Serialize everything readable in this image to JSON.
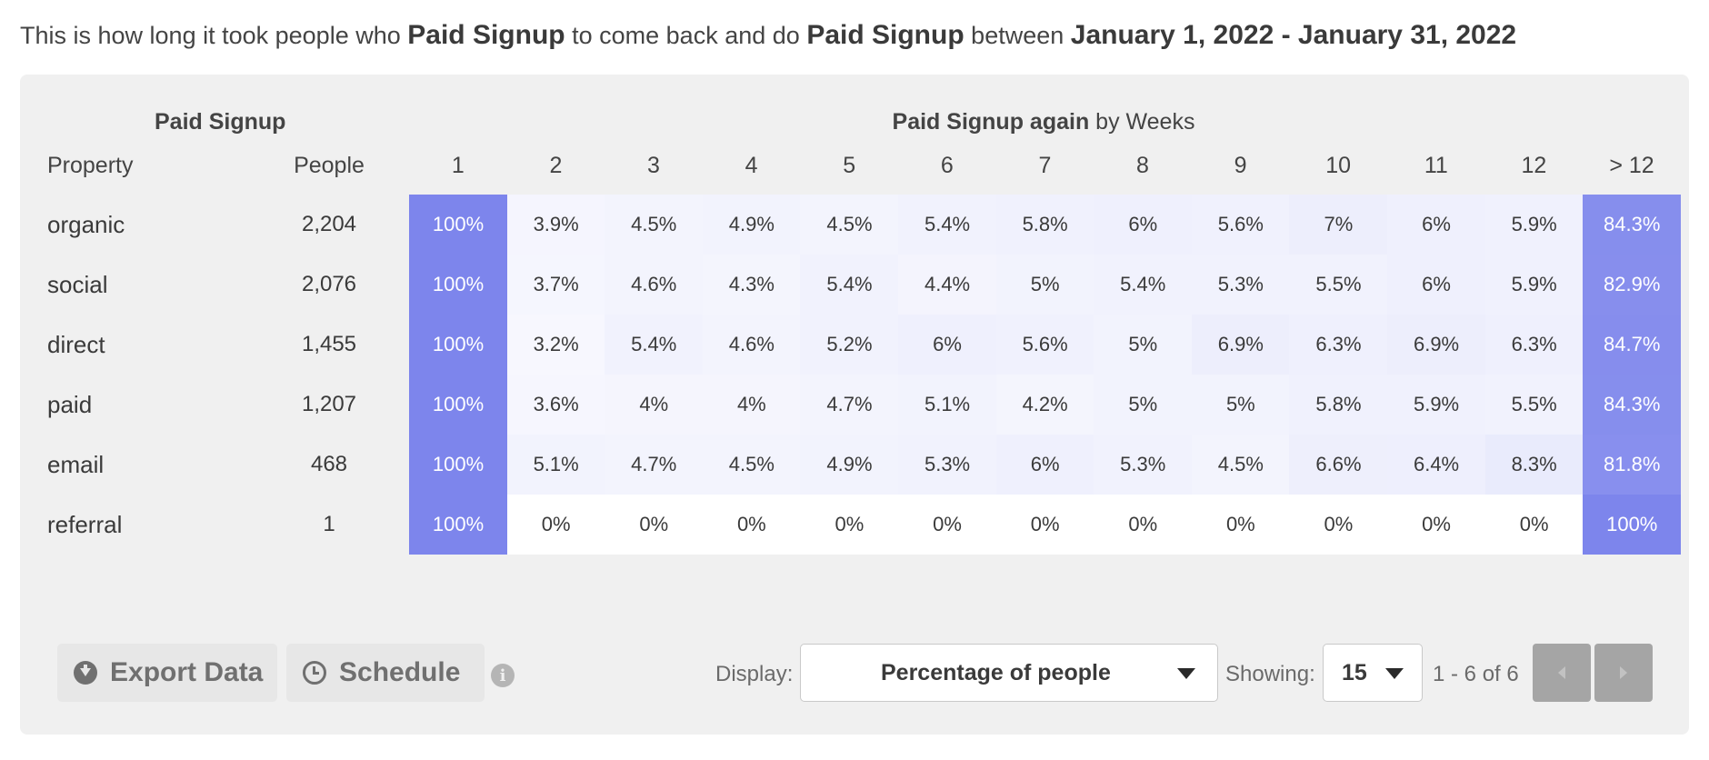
{
  "summary": {
    "prefix": "This is how long it took people who",
    "event": "Paid Signup",
    "middle": "to come back and do",
    "return_event": "Paid Signup",
    "between": "between",
    "date_range": "January 1, 2022 - January 31, 2022"
  },
  "table": {
    "event_header": "Paid Signup",
    "return_header_bold": "Paid Signup again",
    "return_header_rest": "by Weeks",
    "property_header": "Property",
    "people_header": "People",
    "columns": [
      "1",
      "2",
      "3",
      "4",
      "5",
      "6",
      "7",
      "8",
      "9",
      "10",
      "11",
      "12",
      "> 12"
    ],
    "rows": [
      {
        "label": "organic",
        "people": "2,204",
        "cells": [
          "100%",
          "3.9%",
          "4.5%",
          "4.9%",
          "4.5%",
          "5.4%",
          "5.8%",
          "6%",
          "5.6%",
          "7%",
          "6%",
          "5.9%",
          "84.3%"
        ]
      },
      {
        "label": "social",
        "people": "2,076",
        "cells": [
          "100%",
          "3.7%",
          "4.6%",
          "4.3%",
          "5.4%",
          "4.4%",
          "5%",
          "5.4%",
          "5.3%",
          "5.5%",
          "6%",
          "5.9%",
          "82.9%"
        ]
      },
      {
        "label": "direct",
        "people": "1,455",
        "cells": [
          "100%",
          "3.2%",
          "5.4%",
          "4.6%",
          "5.2%",
          "6%",
          "5.6%",
          "5%",
          "6.9%",
          "6.3%",
          "6.9%",
          "6.3%",
          "84.7%"
        ]
      },
      {
        "label": "paid",
        "people": "1,207",
        "cells": [
          "100%",
          "3.6%",
          "4%",
          "4%",
          "4.7%",
          "5.1%",
          "4.2%",
          "5%",
          "5%",
          "5.8%",
          "5.9%",
          "5.5%",
          "84.3%"
        ]
      },
      {
        "label": "email",
        "people": "468",
        "cells": [
          "100%",
          "5.1%",
          "4.7%",
          "4.5%",
          "4.9%",
          "5.3%",
          "6%",
          "5.3%",
          "4.5%",
          "6.6%",
          "6.4%",
          "8.3%",
          "81.8%"
        ]
      },
      {
        "label": "referral",
        "people": "1",
        "cells": [
          "100%",
          "0%",
          "0%",
          "0%",
          "0%",
          "0%",
          "0%",
          "0%",
          "0%",
          "0%",
          "0%",
          "0%",
          "100%"
        ]
      }
    ]
  },
  "colors": {
    "heat_full": "#7d85ec",
    "heat_zero": "#ffffff",
    "panel_bg": "#f0f0f0"
  },
  "footer": {
    "export_label": "Export Data",
    "export_icon": "download-circle-icon",
    "schedule_label": "Schedule",
    "schedule_icon": "clock-icon",
    "info_icon": "info-icon",
    "info_glyph": "i",
    "display_label": "Display:",
    "display_value": "Percentage of people",
    "showing_label": "Showing:",
    "showing_value": "15",
    "page_range": "1 - 6 of 6",
    "prev_icon": "chevron-left-icon",
    "next_icon": "chevron-right-icon"
  }
}
